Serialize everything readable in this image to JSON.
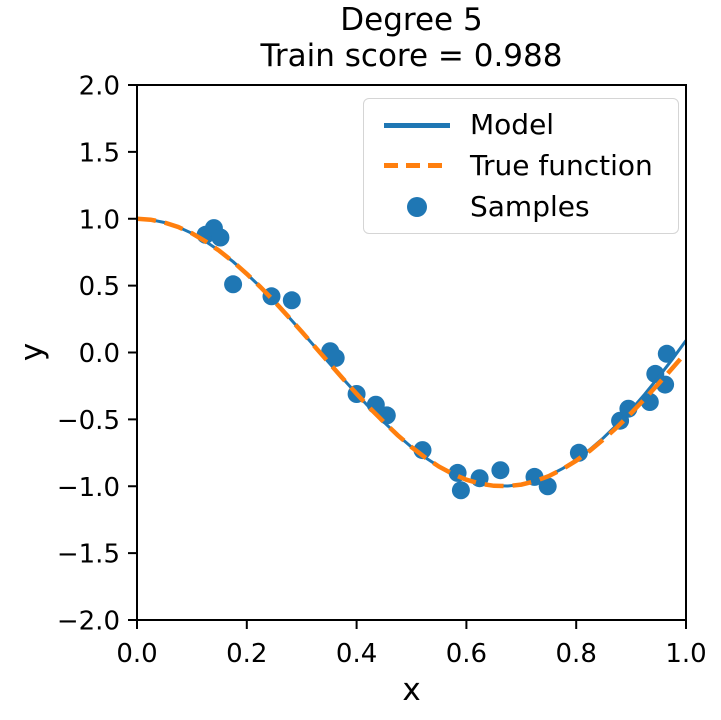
{
  "figure": {
    "title_line1": "Degree 5",
    "title_line2": "Train score = 0.988",
    "xlabel": "x",
    "ylabel": "y"
  },
  "legend": {
    "position": "upper right",
    "entries": [
      {
        "label": "Model",
        "icon": "solid-line",
        "color": "#1f77b4"
      },
      {
        "label": "True function",
        "icon": "dashed-line",
        "color": "#ff7f0e"
      },
      {
        "label": "Samples",
        "icon": "circle-marker",
        "color": "#1f77b4"
      }
    ]
  },
  "colors": {
    "model_line": "#1f77b4",
    "true_function_line": "#ff7f0e",
    "samples": "#1f77b4",
    "axes": "#000000",
    "background": "#ffffff"
  },
  "chart_data": {
    "type": "line",
    "title": "Degree 5\nTrain score = 0.988",
    "xlabel": "x",
    "ylabel": "y",
    "xlim": [
      0.0,
      1.0
    ],
    "ylim": [
      -2.0,
      2.0
    ],
    "grid": false,
    "legend_position": "upper right",
    "xticks": {
      "values": [
        0.0,
        0.2,
        0.4,
        0.6,
        0.8,
        1.0
      ],
      "labels": [
        "0.0",
        "0.2",
        "0.4",
        "0.6",
        "0.8",
        "1.0"
      ]
    },
    "yticks": {
      "values": [
        2.0,
        1.5,
        1.0,
        0.5,
        0.0,
        -0.5,
        -1.0,
        -1.5,
        -2.0
      ],
      "labels": [
        "2.0",
        "1.5",
        "1.0",
        "0.5",
        "0.0",
        "−0.5",
        "−1.0",
        "−1.5",
        "−2.0"
      ]
    },
    "series": [
      {
        "name": "Model",
        "type": "line",
        "style": "solid",
        "color": "#1f77b4",
        "x": [
          0.0,
          0.025,
          0.05,
          0.075,
          0.1,
          0.125,
          0.15,
          0.175,
          0.2,
          0.225,
          0.25,
          0.275,
          0.3,
          0.325,
          0.35,
          0.375,
          0.4,
          0.425,
          0.45,
          0.475,
          0.5,
          0.525,
          0.55,
          0.575,
          0.6,
          0.625,
          0.65,
          0.675,
          0.7,
          0.725,
          0.75,
          0.775,
          0.8,
          0.825,
          0.85,
          0.875,
          0.9,
          0.925,
          0.95,
          0.975,
          1.0
        ],
        "y": [
          1.0,
          0.993,
          0.972,
          0.938,
          0.891,
          0.831,
          0.76,
          0.679,
          0.588,
          0.489,
          0.383,
          0.271,
          0.156,
          0.039,
          -0.078,
          -0.195,
          -0.309,
          -0.419,
          -0.522,
          -0.619,
          -0.707,
          -0.785,
          -0.852,
          -0.907,
          -0.949,
          -0.978,
          -0.996,
          -0.998,
          -0.987,
          -0.961,
          -0.921,
          -0.868,
          -0.803,
          -0.725,
          -0.637,
          -0.537,
          -0.429,
          -0.311,
          -0.185,
          -0.051,
          0.09
        ]
      },
      {
        "name": "True function",
        "type": "line",
        "style": "dashed",
        "color": "#ff7f0e",
        "function": "cos(1.5 * pi * x)",
        "x": [
          0.0,
          0.025,
          0.05,
          0.075,
          0.1,
          0.125,
          0.15,
          0.175,
          0.2,
          0.225,
          0.25,
          0.275,
          0.3,
          0.325,
          0.35,
          0.375,
          0.4,
          0.425,
          0.45,
          0.475,
          0.5,
          0.525,
          0.55,
          0.575,
          0.6,
          0.625,
          0.65,
          0.675,
          0.7,
          0.725,
          0.75,
          0.775,
          0.8,
          0.825,
          0.85,
          0.875,
          0.9,
          0.925,
          0.95,
          0.975,
          1.0
        ],
        "y": [
          1.0,
          0.993,
          0.972,
          0.938,
          0.891,
          0.831,
          0.76,
          0.679,
          0.588,
          0.489,
          0.383,
          0.271,
          0.156,
          0.039,
          -0.078,
          -0.195,
          -0.309,
          -0.419,
          -0.522,
          -0.619,
          -0.707,
          -0.785,
          -0.853,
          -0.908,
          -0.951,
          -0.981,
          -0.997,
          -0.999,
          -0.988,
          -0.962,
          -0.924,
          -0.872,
          -0.809,
          -0.734,
          -0.649,
          -0.556,
          -0.454,
          -0.346,
          -0.233,
          -0.118,
          0.0
        ]
      },
      {
        "name": "Samples",
        "type": "scatter",
        "color": "#1f77b4",
        "marker_radius_px": 9,
        "points": [
          [
            0.125,
            0.88
          ],
          [
            0.14,
            0.93
          ],
          [
            0.152,
            0.86
          ],
          [
            0.175,
            0.51
          ],
          [
            0.245,
            0.42
          ],
          [
            0.282,
            0.39
          ],
          [
            0.352,
            0.01
          ],
          [
            0.362,
            -0.04
          ],
          [
            0.4,
            -0.31
          ],
          [
            0.435,
            -0.39
          ],
          [
            0.455,
            -0.47
          ],
          [
            0.52,
            -0.73
          ],
          [
            0.584,
            -0.9
          ],
          [
            0.59,
            -1.03
          ],
          [
            0.624,
            -0.94
          ],
          [
            0.662,
            -0.88
          ],
          [
            0.724,
            -0.93
          ],
          [
            0.748,
            -1.0
          ],
          [
            0.805,
            -0.75
          ],
          [
            0.88,
            -0.51
          ],
          [
            0.895,
            -0.42
          ],
          [
            0.934,
            -0.37
          ],
          [
            0.944,
            -0.16
          ],
          [
            0.962,
            -0.24
          ],
          [
            0.965,
            -0.01
          ]
        ]
      }
    ]
  }
}
